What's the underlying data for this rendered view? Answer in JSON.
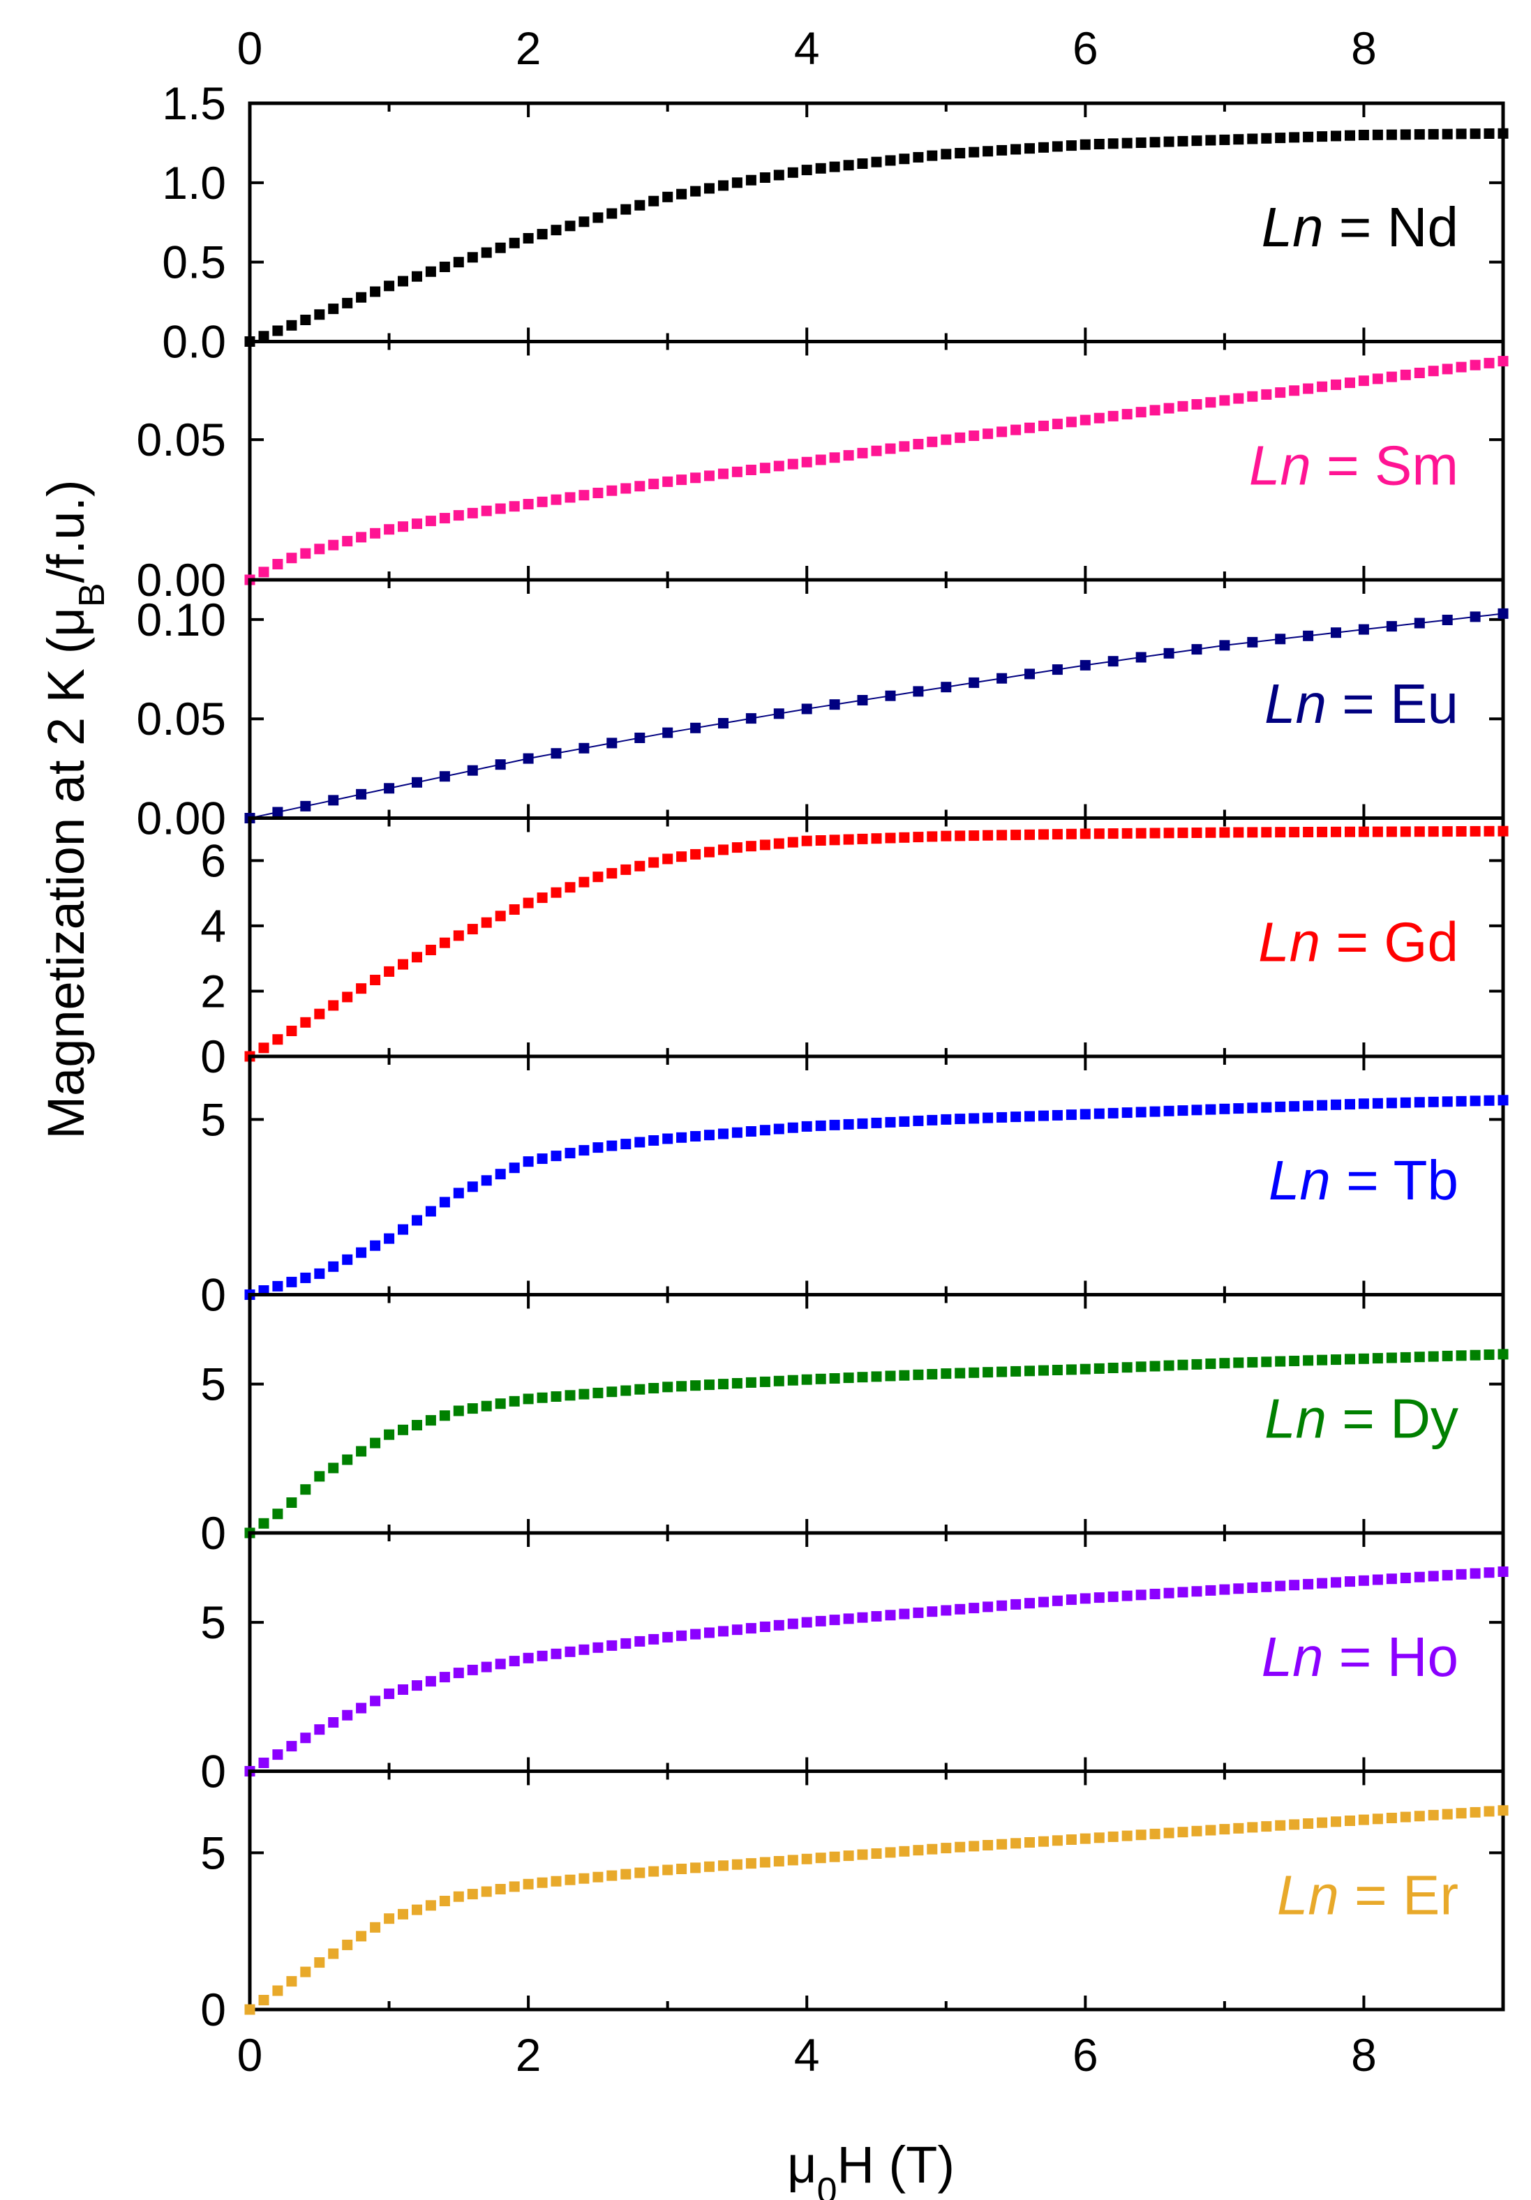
{
  "figure": {
    "ylabel": "Magnetization at 2 K (μB/f.u.)",
    "ylabel_parts": {
      "main": "Magnetization at 2 K (μ",
      "sub": "B",
      "tail": "/f.u.)"
    },
    "xlabel_parts": {
      "main": "μ",
      "sub": "0",
      "tail": "H (T)"
    },
    "xlabel": "μ0H (T)"
  },
  "chart_data": [
    {
      "type": "scatter",
      "panel": "Nd",
      "label_italic": "Ln",
      "label_rest": " = Nd",
      "color": "#000000",
      "x_range": [
        0,
        9
      ],
      "ylim": [
        0,
        1.5
      ],
      "x_ticks": [
        "0",
        "2",
        "4",
        "6",
        "8"
      ],
      "y_ticks": [
        {
          "value": 0,
          "label": "0.0"
        },
        {
          "value": 0.5,
          "label": "0.5"
        },
        {
          "value": 1.0,
          "label": "1.0"
        },
        {
          "value": 1.5,
          "label": "1.5"
        }
      ],
      "xlabel": "μ0H (T)",
      "ylabel": "Magnetization at 2 K (μB/f.u.)",
      "curve_points": [
        [
          0,
          0
        ],
        [
          0.5,
          0.17
        ],
        [
          1,
          0.35
        ],
        [
          1.5,
          0.5
        ],
        [
          2,
          0.65
        ],
        [
          2.5,
          0.78
        ],
        [
          3,
          0.91
        ],
        [
          3.5,
          1.0
        ],
        [
          4,
          1.08
        ],
        [
          4.5,
          1.13
        ],
        [
          5,
          1.18
        ],
        [
          6,
          1.24
        ],
        [
          7,
          1.27
        ],
        [
          8,
          1.3
        ],
        [
          9,
          1.31
        ]
      ],
      "n_markers": 91,
      "connector_line": false
    },
    {
      "type": "scatter",
      "panel": "Sm",
      "label_italic": "Ln",
      "label_rest": " = Sm",
      "color": "#FF1493",
      "x_range": [
        0,
        9
      ],
      "ylim": [
        0,
        0.085
      ],
      "x_ticks": [
        "0",
        "2",
        "4",
        "6",
        "8"
      ],
      "y_ticks": [
        {
          "value": 0,
          "label": "0.00"
        },
        {
          "value": 0.05,
          "label": "0.05"
        }
      ],
      "curve_points": [
        [
          0,
          0
        ],
        [
          0.25,
          0.007
        ],
        [
          0.5,
          0.011
        ],
        [
          1,
          0.018
        ],
        [
          1.5,
          0.023
        ],
        [
          2,
          0.027
        ],
        [
          3,
          0.035
        ],
        [
          4,
          0.042
        ],
        [
          5,
          0.05
        ],
        [
          6,
          0.057
        ],
        [
          7,
          0.064
        ],
        [
          8,
          0.071
        ],
        [
          9,
          0.078
        ]
      ],
      "n_markers": 91,
      "connector_line": false
    },
    {
      "type": "scatter",
      "panel": "Eu",
      "label_italic": "Ln",
      "label_rest": " = Eu",
      "color": "#000080",
      "x_range": [
        0,
        9
      ],
      "ylim": [
        0,
        0.12
      ],
      "x_ticks": [
        "0",
        "2",
        "4",
        "6",
        "8"
      ],
      "y_ticks": [
        {
          "value": 0,
          "label": "0.00"
        },
        {
          "value": 0.05,
          "label": "0.05"
        },
        {
          "value": 0.1,
          "label": "0.10"
        }
      ],
      "curve_points": [
        [
          0,
          0
        ],
        [
          1,
          0.015
        ],
        [
          2,
          0.03
        ],
        [
          3,
          0.043
        ],
        [
          4,
          0.055
        ],
        [
          5,
          0.066
        ],
        [
          6,
          0.077
        ],
        [
          7,
          0.087
        ],
        [
          8,
          0.095
        ],
        [
          9,
          0.103
        ]
      ],
      "n_markers": 46,
      "connector_line": true
    },
    {
      "type": "scatter",
      "panel": "Gd",
      "label_italic": "Ln",
      "label_rest": " = Gd",
      "color": "#FF0000",
      "x_range": [
        0,
        9
      ],
      "ylim": [
        0,
        7.3
      ],
      "x_ticks": [
        "0",
        "2",
        "4",
        "6",
        "8"
      ],
      "y_ticks": [
        {
          "value": 0,
          "label": "0"
        },
        {
          "value": 2,
          "label": "2"
        },
        {
          "value": 4,
          "label": "4"
        },
        {
          "value": 6,
          "label": "6"
        }
      ],
      "curve_points": [
        [
          0,
          0
        ],
        [
          0.5,
          1.3
        ],
        [
          1,
          2.6
        ],
        [
          1.5,
          3.7
        ],
        [
          2,
          4.7
        ],
        [
          2.5,
          5.5
        ],
        [
          3,
          6.05
        ],
        [
          3.5,
          6.4
        ],
        [
          4,
          6.6
        ],
        [
          5,
          6.75
        ],
        [
          6,
          6.82
        ],
        [
          7,
          6.86
        ],
        [
          8,
          6.88
        ],
        [
          9,
          6.9
        ]
      ],
      "n_markers": 91,
      "connector_line": false
    },
    {
      "type": "scatter",
      "panel": "Tb",
      "label_italic": "Ln",
      "label_rest": " = Tb",
      "color": "#0000FF",
      "x_range": [
        0,
        9
      ],
      "ylim": [
        0,
        6.8
      ],
      "x_ticks": [
        "0",
        "2",
        "4",
        "6",
        "8"
      ],
      "y_ticks": [
        {
          "value": 0,
          "label": "0"
        },
        {
          "value": 5,
          "label": "5"
        }
      ],
      "curve_points": [
        [
          0,
          0
        ],
        [
          0.5,
          0.6
        ],
        [
          1,
          1.6
        ],
        [
          1.5,
          2.9
        ],
        [
          2,
          3.8
        ],
        [
          2.5,
          4.2
        ],
        [
          3,
          4.45
        ],
        [
          4,
          4.8
        ],
        [
          5,
          5.0
        ],
        [
          6,
          5.15
        ],
        [
          7,
          5.3
        ],
        [
          8,
          5.45
        ],
        [
          9,
          5.55
        ]
      ],
      "n_markers": 91,
      "connector_line": false
    },
    {
      "type": "scatter",
      "panel": "Dy",
      "label_italic": "Ln",
      "label_rest": " = Dy",
      "color": "#008000",
      "x_range": [
        0,
        9
      ],
      "ylim": [
        0,
        8
      ],
      "x_ticks": [
        "0",
        "2",
        "4",
        "6",
        "8"
      ],
      "y_ticks": [
        {
          "value": 0,
          "label": "0"
        },
        {
          "value": 5,
          "label": "5"
        }
      ],
      "curve_points": [
        [
          0,
          0
        ],
        [
          0.25,
          0.8
        ],
        [
          0.5,
          1.9
        ],
        [
          1,
          3.3
        ],
        [
          1.5,
          4.1
        ],
        [
          2,
          4.5
        ],
        [
          3,
          4.9
        ],
        [
          4,
          5.15
        ],
        [
          5,
          5.35
        ],
        [
          6,
          5.5
        ],
        [
          7,
          5.7
        ],
        [
          8,
          5.85
        ],
        [
          9,
          6.0
        ]
      ],
      "n_markers": 91,
      "connector_line": false
    },
    {
      "type": "scatter",
      "panel": "Ho",
      "label_italic": "Ln",
      "label_rest": " = Ho",
      "color": "#8B00FF",
      "x_range": [
        0,
        9
      ],
      "ylim": [
        0,
        8
      ],
      "x_ticks": [
        "0",
        "2",
        "4",
        "6",
        "8"
      ],
      "y_ticks": [
        {
          "value": 0,
          "label": "0"
        },
        {
          "value": 5,
          "label": "5"
        }
      ],
      "curve_points": [
        [
          0,
          0
        ],
        [
          0.5,
          1.4
        ],
        [
          1,
          2.6
        ],
        [
          1.5,
          3.3
        ],
        [
          2,
          3.8
        ],
        [
          3,
          4.5
        ],
        [
          4,
          5.0
        ],
        [
          5,
          5.4
        ],
        [
          6,
          5.8
        ],
        [
          7,
          6.1
        ],
        [
          8,
          6.4
        ],
        [
          9,
          6.7
        ]
      ],
      "n_markers": 91,
      "connector_line": false
    },
    {
      "type": "scatter",
      "panel": "Er",
      "label_italic": "Ln",
      "label_rest": " = Er",
      "color": "#E8A92A",
      "x_range": [
        0,
        9
      ],
      "ylim": [
        0,
        7.6
      ],
      "x_ticks": [
        "0",
        "2",
        "4",
        "6",
        "8"
      ],
      "y_ticks": [
        {
          "value": 0,
          "label": "0"
        },
        {
          "value": 5,
          "label": "5"
        }
      ],
      "curve_points": [
        [
          0,
          0
        ],
        [
          0.5,
          1.5
        ],
        [
          1,
          2.9
        ],
        [
          1.5,
          3.6
        ],
        [
          2,
          4.0
        ],
        [
          3,
          4.45
        ],
        [
          4,
          4.8
        ],
        [
          5,
          5.15
        ],
        [
          6,
          5.45
        ],
        [
          7,
          5.75
        ],
        [
          8,
          6.05
        ],
        [
          9,
          6.35
        ]
      ],
      "n_markers": 91,
      "connector_line": false
    }
  ]
}
